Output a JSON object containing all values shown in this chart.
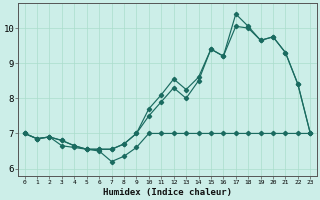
{
  "xlabel": "Humidex (Indice chaleur)",
  "bg_color": "#cceee8",
  "grid_color": "#aaddcc",
  "line_color": "#1a6b60",
  "xlim": [
    -0.5,
    23.5
  ],
  "ylim": [
    5.8,
    10.7
  ],
  "yticks": [
    6,
    7,
    8,
    9,
    10
  ],
  "xticks": [
    0,
    1,
    2,
    3,
    4,
    5,
    6,
    7,
    8,
    9,
    10,
    11,
    12,
    13,
    14,
    15,
    16,
    17,
    18,
    19,
    20,
    21,
    22,
    23
  ],
  "series1_x": [
    0,
    1,
    2,
    3,
    4,
    5,
    6,
    7,
    8,
    9,
    10,
    11,
    12,
    13,
    14,
    15,
    16,
    17,
    18,
    19,
    20,
    21,
    22,
    23
  ],
  "series1_y": [
    7.0,
    6.85,
    6.9,
    6.65,
    6.6,
    6.55,
    6.5,
    6.2,
    6.35,
    6.6,
    7.0,
    7.0,
    7.0,
    7.0,
    7.0,
    7.0,
    7.0,
    7.0,
    7.0,
    7.0,
    7.0,
    7.0,
    7.0,
    7.0
  ],
  "series2_x": [
    0,
    1,
    2,
    3,
    4,
    5,
    6,
    7,
    8,
    9,
    10,
    11,
    12,
    13,
    14,
    15,
    16,
    17,
    18,
    19,
    20,
    21,
    22,
    23
  ],
  "series2_y": [
    7.0,
    6.85,
    6.9,
    6.8,
    6.65,
    6.55,
    6.55,
    6.55,
    6.7,
    7.0,
    7.5,
    7.9,
    8.3,
    8.0,
    8.5,
    9.4,
    9.2,
    10.05,
    10.0,
    9.65,
    9.75,
    9.3,
    8.4,
    7.0
  ],
  "series3_x": [
    0,
    1,
    2,
    3,
    4,
    5,
    6,
    7,
    8,
    9,
    10,
    11,
    12,
    13,
    14,
    15,
    16,
    17,
    18,
    19,
    20,
    21,
    22,
    23
  ],
  "series3_y": [
    7.0,
    6.85,
    6.9,
    6.8,
    6.65,
    6.55,
    6.55,
    6.55,
    6.7,
    7.0,
    7.7,
    8.1,
    8.55,
    8.25,
    8.6,
    9.4,
    9.2,
    10.4,
    10.05,
    9.65,
    9.75,
    9.3,
    8.4,
    7.0
  ]
}
